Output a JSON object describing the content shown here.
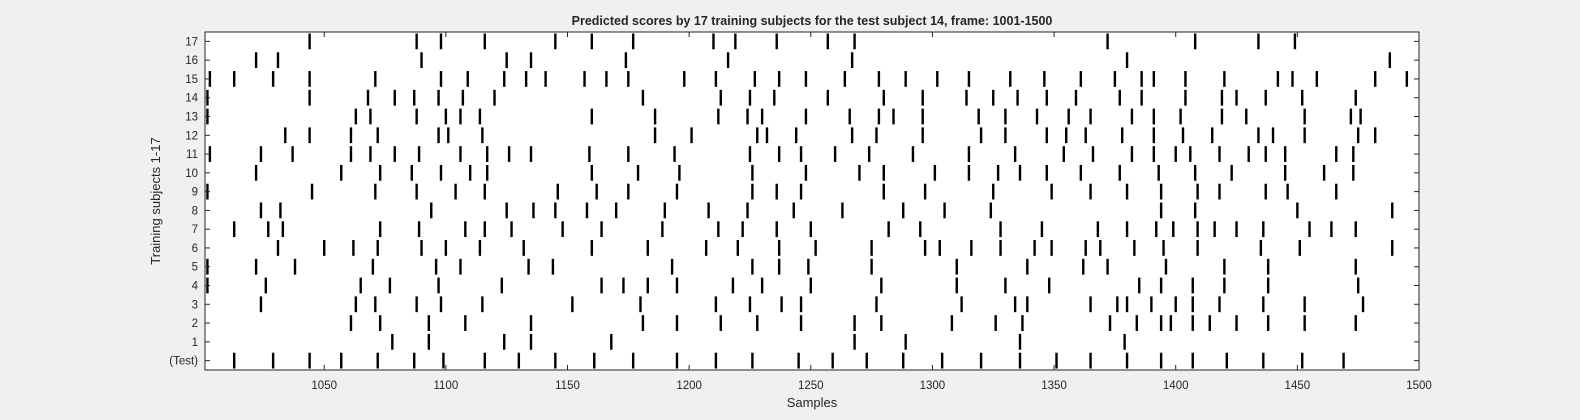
{
  "chart_data": {
    "type": "raster",
    "title": "Predicted scores by 17 training subjects for the test subject 14, frame: 1001-1500",
    "xlabel": "Samples",
    "ylabel": "Training subjects 1-17",
    "xlim": [
      1001,
      1500
    ],
    "xticks": [
      1050,
      1100,
      1150,
      1200,
      1250,
      1300,
      1350,
      1400,
      1450,
      1500
    ],
    "yticklabels": [
      "(Test)",
      "1",
      "2",
      "3",
      "4",
      "5",
      "6",
      "7",
      "8",
      "9",
      "10",
      "11",
      "12",
      "13",
      "14",
      "15",
      "16",
      "17"
    ],
    "background": "#ffffff",
    "mark_color": "#000000",
    "series": [
      {
        "row": "(Test)",
        "x": [
          1013,
          1029,
          1044,
          1057,
          1072,
          1087,
          1099,
          1116,
          1130,
          1145,
          1161,
          1177,
          1195,
          1211,
          1226,
          1245,
          1259,
          1273,
          1288,
          1304,
          1320,
          1336,
          1351,
          1365,
          1380,
          1394,
          1407,
          1421,
          1436,
          1452,
          1469
        ]
      },
      {
        "row": "1",
        "x": [
          1078,
          1093,
          1124,
          1135,
          1168,
          1268,
          1289,
          1336,
          1379
        ]
      },
      {
        "row": "2",
        "x": [
          1061,
          1073,
          1093,
          1108,
          1135,
          1181,
          1195,
          1213,
          1228,
          1246,
          1268,
          1279,
          1308,
          1326,
          1337,
          1373,
          1384,
          1394,
          1398,
          1407,
          1414,
          1425,
          1438,
          1453,
          1474
        ]
      },
      {
        "row": "3",
        "x": [
          1024,
          1063,
          1071,
          1088,
          1098,
          1115,
          1152,
          1180,
          1211,
          1225,
          1238,
          1246,
          1277,
          1312,
          1334,
          1339,
          1365,
          1376,
          1380,
          1390,
          1400,
          1407,
          1418,
          1436,
          1453,
          1477
        ]
      },
      {
        "row": "4",
        "x": [
          1002,
          1026,
          1065,
          1077,
          1097,
          1123,
          1164,
          1173,
          1183,
          1195,
          1218,
          1230,
          1250,
          1279,
          1310,
          1330,
          1348,
          1385,
          1394,
          1407,
          1420,
          1438,
          1475
        ]
      },
      {
        "row": "5",
        "x": [
          1002,
          1022,
          1038,
          1070,
          1096,
          1106,
          1134,
          1144,
          1193,
          1226,
          1237,
          1249,
          1275,
          1310,
          1339,
          1362,
          1372,
          1396,
          1420,
          1438,
          1474
        ]
      },
      {
        "row": "6",
        "x": [
          1031,
          1050,
          1062,
          1072,
          1090,
          1100,
          1114,
          1132,
          1160,
          1183,
          1207,
          1220,
          1237,
          1252,
          1275,
          1297,
          1303,
          1316,
          1328,
          1342,
          1349,
          1363,
          1369,
          1383,
          1395,
          1409,
          1435,
          1451,
          1489
        ]
      },
      {
        "row": "7",
        "x": [
          1013,
          1027,
          1033,
          1073,
          1089,
          1108,
          1116,
          1127,
          1148,
          1164,
          1189,
          1212,
          1222,
          1236,
          1250,
          1282,
          1295,
          1328,
          1345,
          1368,
          1380,
          1392,
          1399,
          1409,
          1416,
          1425,
          1436,
          1455,
          1464,
          1474
        ]
      },
      {
        "row": "8",
        "x": [
          1024,
          1032,
          1094,
          1125,
          1136,
          1145,
          1158,
          1170,
          1190,
          1208,
          1224,
          1243,
          1263,
          1288,
          1305,
          1324,
          1394,
          1408,
          1450,
          1489
        ]
      },
      {
        "row": "9",
        "x": [
          1002,
          1045,
          1071,
          1088,
          1104,
          1116,
          1146,
          1162,
          1175,
          1195,
          1226,
          1236,
          1246,
          1280,
          1297,
          1325,
          1349,
          1365,
          1380,
          1394,
          1409,
          1418,
          1437,
          1446,
          1466
        ]
      },
      {
        "row": "10",
        "x": [
          1022,
          1057,
          1073,
          1086,
          1098,
          1110,
          1117,
          1160,
          1179,
          1196,
          1226,
          1248,
          1270,
          1280,
          1301,
          1315,
          1327,
          1336,
          1347,
          1361,
          1377,
          1393,
          1408,
          1423,
          1445,
          1461,
          1473
        ]
      },
      {
        "row": "11",
        "x": [
          1003,
          1024,
          1037,
          1061,
          1069,
          1079,
          1089,
          1106,
          1117,
          1126,
          1135,
          1159,
          1175,
          1194,
          1225,
          1237,
          1246,
          1260,
          1274,
          1292,
          1315,
          1334,
          1354,
          1366,
          1382,
          1391,
          1400,
          1406,
          1418,
          1430,
          1437,
          1445,
          1466,
          1473
        ]
      },
      {
        "row": "12",
        "x": [
          1034,
          1044,
          1061,
          1072,
          1097,
          1101,
          1115,
          1186,
          1201,
          1228,
          1232,
          1244,
          1267,
          1277,
          1296,
          1320,
          1330,
          1347,
          1355,
          1363,
          1378,
          1391,
          1403,
          1415,
          1434,
          1440,
          1453,
          1475,
          1482
        ]
      },
      {
        "row": "13",
        "x": [
          1002,
          1063,
          1069,
          1088,
          1100,
          1106,
          1114,
          1160,
          1186,
          1212,
          1224,
          1230,
          1248,
          1266,
          1278,
          1284,
          1296,
          1319,
          1330,
          1343,
          1356,
          1365,
          1382,
          1391,
          1402,
          1419,
          1429,
          1453,
          1472,
          1476
        ]
      },
      {
        "row": "14",
        "x": [
          1002,
          1044,
          1068,
          1079,
          1087,
          1097,
          1107,
          1120,
          1181,
          1213,
          1225,
          1235,
          1257,
          1280,
          1296,
          1314,
          1325,
          1335,
          1347,
          1359,
          1377,
          1386,
          1404,
          1419,
          1425,
          1437,
          1452,
          1474
        ]
      },
      {
        "row": "15",
        "x": [
          1003,
          1013,
          1029,
          1044,
          1071,
          1098,
          1109,
          1124,
          1133,
          1141,
          1157,
          1166,
          1175,
          1198,
          1211,
          1227,
          1237,
          1248,
          1264,
          1278,
          1289,
          1302,
          1315,
          1332,
          1346,
          1361,
          1375,
          1386,
          1391,
          1404,
          1420,
          1442,
          1448,
          1458,
          1482,
          1495
        ]
      },
      {
        "row": "16",
        "x": [
          1022,
          1031,
          1090,
          1125,
          1135,
          1174,
          1216,
          1267,
          1380,
          1488
        ]
      },
      {
        "row": "17",
        "x": [
          1044,
          1088,
          1098,
          1116,
          1145,
          1160,
          1177,
          1210,
          1219,
          1236,
          1257,
          1268,
          1372,
          1408,
          1434,
          1449
        ]
      }
    ]
  }
}
